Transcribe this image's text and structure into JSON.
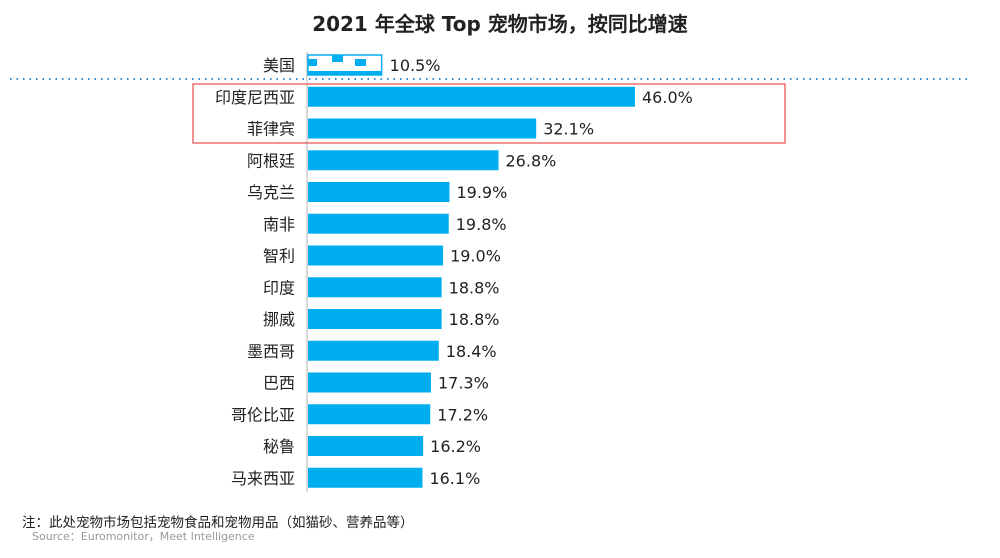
{
  "chart_data": {
    "type": "bar",
    "orientation": "horizontal",
    "title": "2021 年全球 Top 宠物市场，按同比增速",
    "categories": [
      "美国",
      "印度尼西亚",
      "菲律宾",
      "阿根廷",
      "乌克兰",
      "南非",
      "智利",
      "印度",
      "挪威",
      "墨西哥",
      "巴西",
      "哥伦比亚",
      "秘鲁",
      "马来西亚"
    ],
    "values": [
      10.5,
      46.0,
      32.1,
      26.8,
      19.9,
      19.8,
      19.0,
      18.8,
      18.8,
      18.4,
      17.3,
      17.2,
      16.2,
      16.1
    ],
    "value_labels": [
      "10.5%",
      "46.0%",
      "32.1%",
      "26.8%",
      "19.9%",
      "19.8%",
      "19.0%",
      "18.8%",
      "18.8%",
      "18.4%",
      "17.3%",
      "17.2%",
      "16.2%",
      "16.1%"
    ],
    "highlighted": [
      "印度尼西亚",
      "菲律宾"
    ],
    "reference_category": "美国",
    "xlim": [
      0,
      50
    ],
    "grid": false,
    "colors": {
      "bar": "#00AEEF",
      "highlight_box": "#E84C4C",
      "divider": "#2E8BD6"
    }
  },
  "footer": {
    "note": "注：此处宠物市场包括宠物食品和宠物用品（如猫砂、营养品等）",
    "source": "Source：Euromonitor，Meet Intelligence"
  }
}
